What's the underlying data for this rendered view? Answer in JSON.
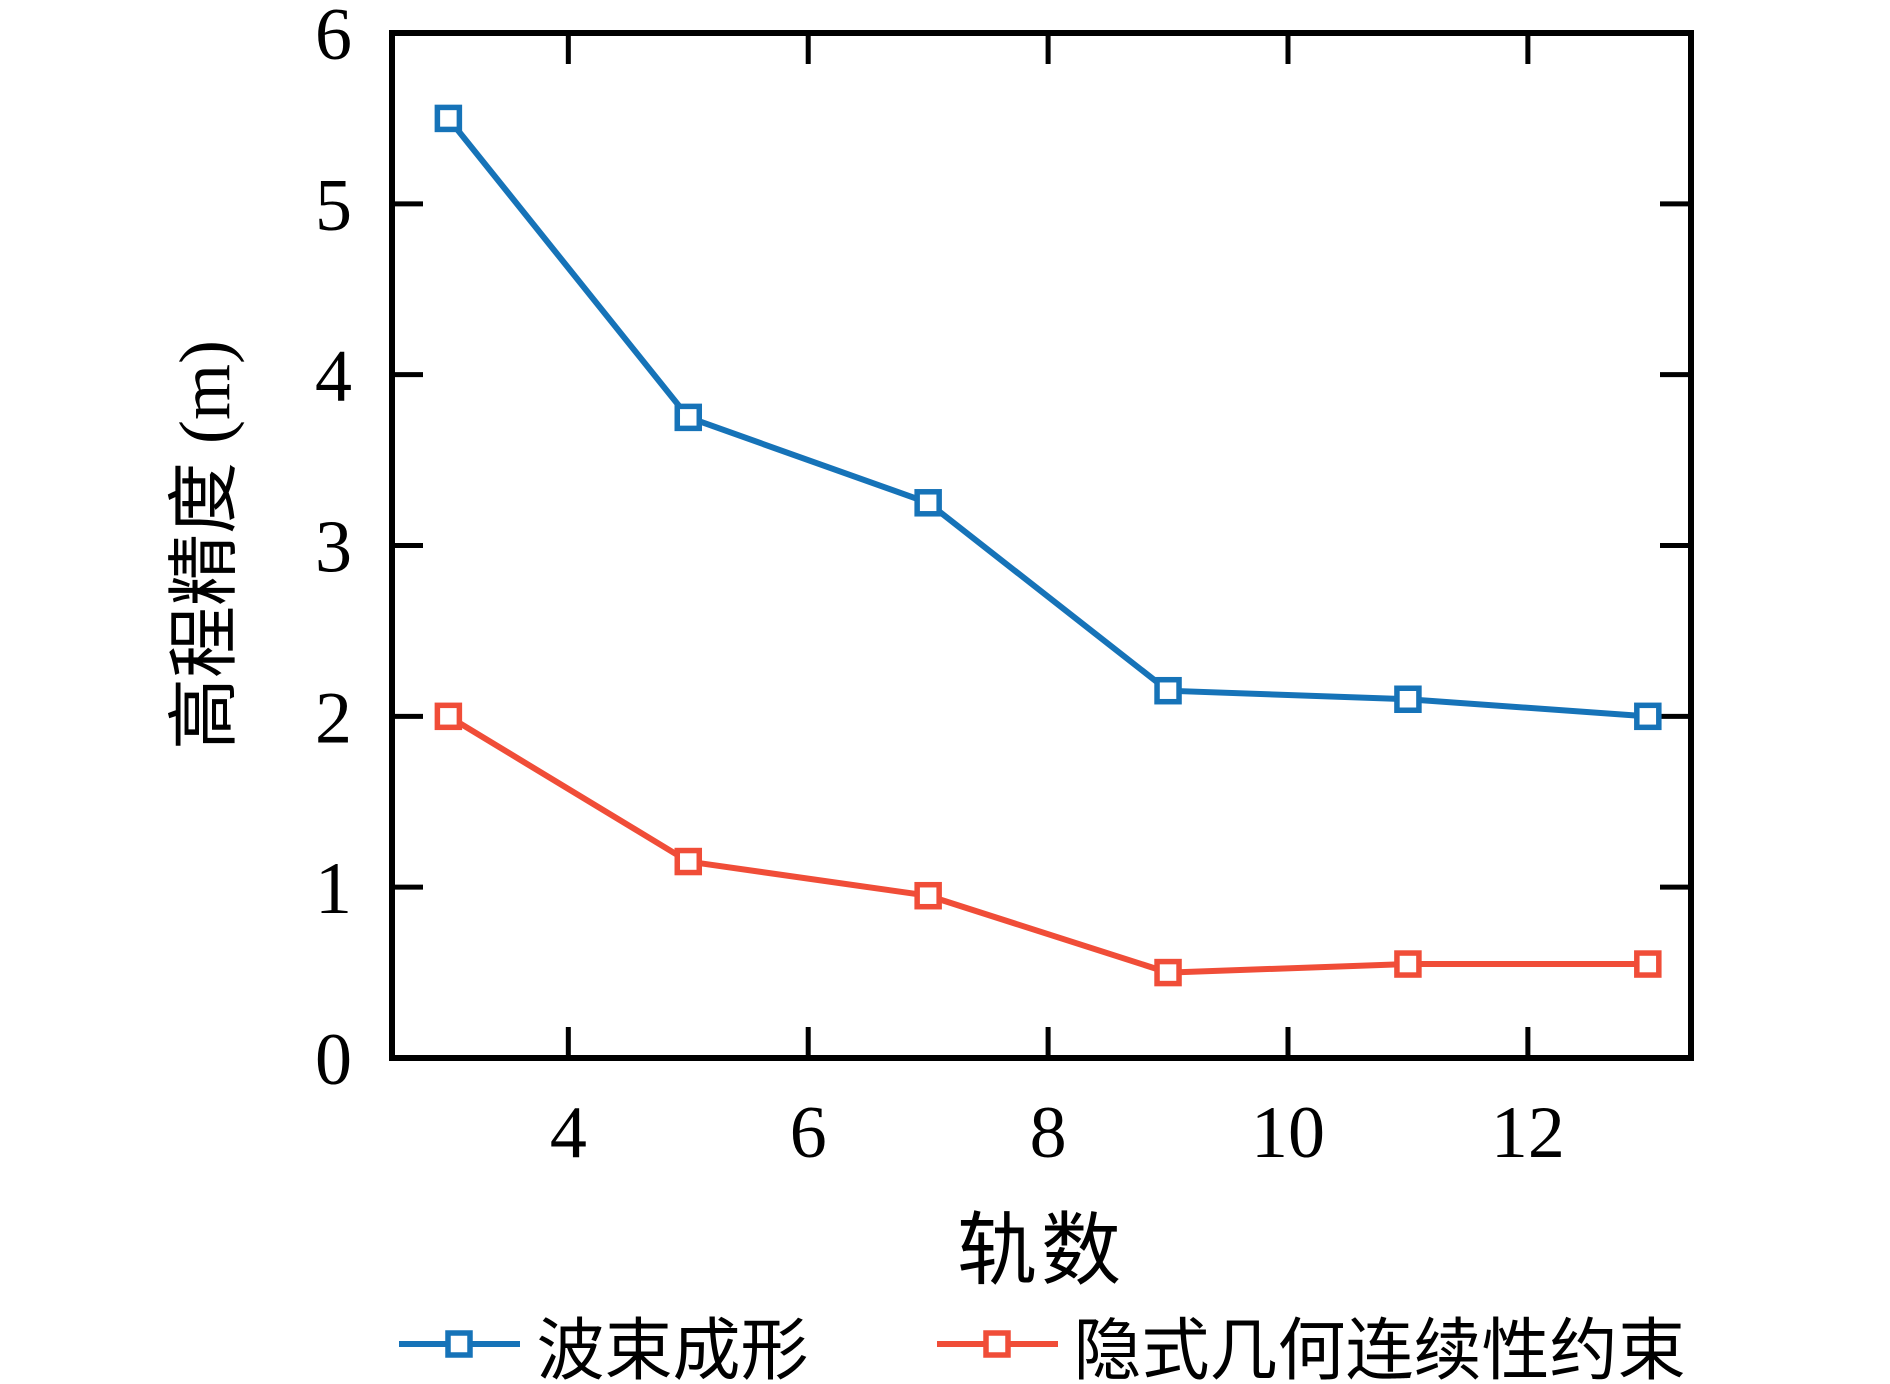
{
  "figure": {
    "background": "#ffffff",
    "axis_color": "#000000"
  },
  "chart_data": {
    "type": "line",
    "title": "",
    "xlabel": "轨数",
    "ylabel": "高程精度 (m)",
    "x": [
      3,
      5,
      7,
      9,
      11,
      13
    ],
    "series": [
      {
        "name": "波束成形",
        "color": "#1673b8",
        "marker": "open-square",
        "values": [
          5.5,
          3.75,
          3.25,
          2.15,
          2.1,
          2.0
        ]
      },
      {
        "name": "隐式几何连续性约束",
        "color": "#f04d38",
        "marker": "open-square",
        "values": [
          2.0,
          1.15,
          0.95,
          0.5,
          0.55,
          0.55
        ]
      }
    ],
    "xlim": [
      2.53,
      13.36
    ],
    "ylim": [
      0,
      6
    ],
    "x_ticks": [
      4,
      6,
      8,
      10,
      12
    ],
    "y_ticks": [
      0,
      1,
      2,
      3,
      4,
      5,
      6
    ],
    "grid": false,
    "tick_style": "inward-mirrored",
    "legend_position": "bottom-center"
  }
}
